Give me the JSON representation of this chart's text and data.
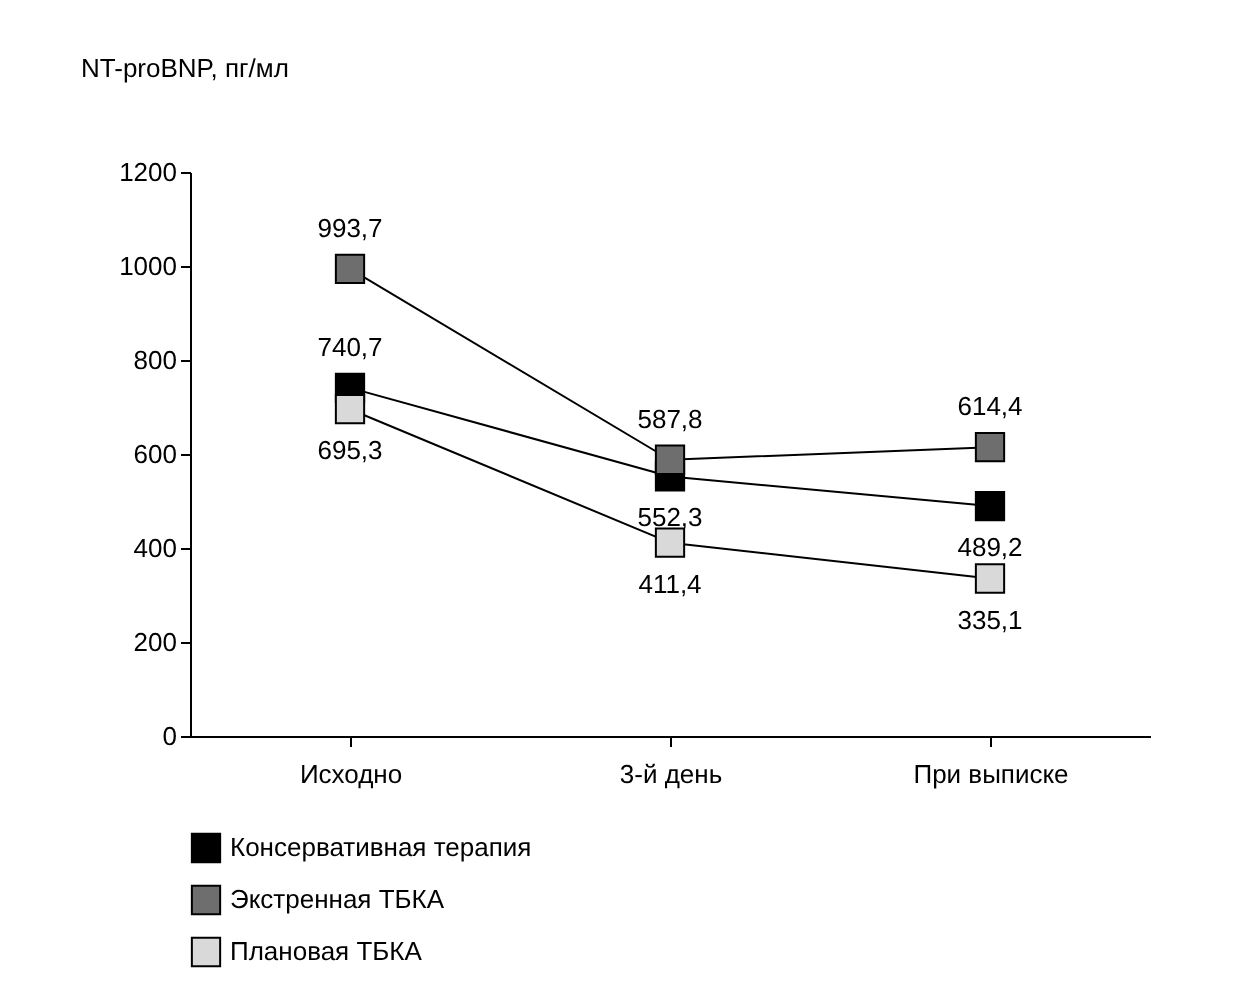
{
  "chart_data": {
    "type": "line",
    "ylabel": "NT-proBNP, пг/мл",
    "categories": [
      "Исходно",
      "3-й день",
      "При выписке"
    ],
    "ylim": [
      0,
      1200
    ],
    "yticks": [
      0,
      200,
      400,
      600,
      800,
      1000,
      1200
    ],
    "grid": false,
    "legend": "bottom",
    "marker": "square",
    "line_style": "solid",
    "data_labels": true,
    "series": [
      {
        "name": "Консервативная терапия",
        "color": "#000000",
        "values": [
          740.7,
          552.3,
          489.2
        ],
        "value_labels": [
          "740,7",
          "552,3",
          "489,2"
        ]
      },
      {
        "name": "Экстренная ТБКА",
        "color": "#6e6e6e",
        "values": [
          993.7,
          587.8,
          614.4
        ],
        "value_labels": [
          "993,7",
          "587,8",
          "614,4"
        ]
      },
      {
        "name": "Плановая ТБКА",
        "color": "#d9d9d9",
        "values": [
          695.3,
          411.4,
          335.1
        ],
        "value_labels": [
          "695,3",
          "411,4",
          "335,1"
        ]
      }
    ]
  }
}
